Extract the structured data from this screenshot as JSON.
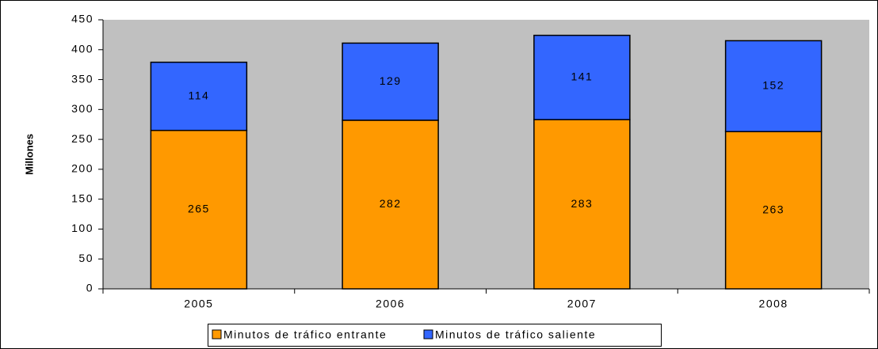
{
  "chart_data": {
    "type": "stacked_bar",
    "y_label": "Millones",
    "categories": [
      "2005",
      "2006",
      "2007",
      "2008"
    ],
    "series": [
      {
        "name": "Minutos de tráfico entrante",
        "color": "#ff9900",
        "values": [
          265,
          282,
          283,
          263
        ]
      },
      {
        "name": "Minutos de tráfico saliente",
        "color": "#3366ff",
        "values": [
          114,
          129,
          141,
          152
        ]
      }
    ],
    "ylim": [
      0,
      450
    ],
    "yticks": [
      0,
      50,
      100,
      150,
      200,
      250,
      300,
      350,
      400,
      450
    ],
    "grid": false,
    "legend": "bottom",
    "plot_background": "#c0c0c0"
  }
}
